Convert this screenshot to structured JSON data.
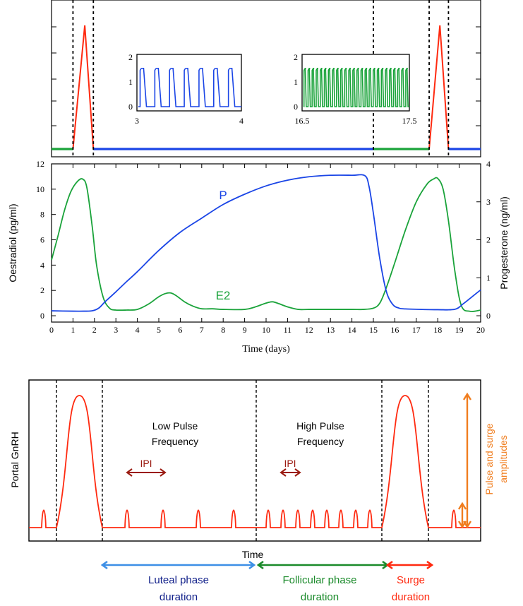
{
  "colors": {
    "gnrh": "#ff2a10",
    "progesterone": "#1a45e6",
    "oestradiol": "#1aa33a",
    "luteal": "#3d8fe6",
    "follicular": "#1a8a2a",
    "surge": "#ff2a10",
    "ipi": "#9a1a10",
    "amplitude": "#f07d1e",
    "label_blue": "#11208a"
  },
  "chart_data": [
    {
      "type": "line",
      "id": "gnrh-simulation",
      "xlim": [
        0,
        20
      ],
      "segments": [
        {
          "from": 0,
          "to": 1,
          "series": "follicular-green"
        },
        {
          "from": 1,
          "to": 1.95,
          "series": "surge-red",
          "peak_x": 1.55
        },
        {
          "from": 1.95,
          "to": 15.0,
          "series": "luteal-blue"
        },
        {
          "from": 15.0,
          "to": 17.6,
          "series": "follicular-green"
        },
        {
          "from": 17.6,
          "to": 18.5,
          "series": "surge-red",
          "peak_x": 18.1
        },
        {
          "from": 18.5,
          "to": 20,
          "series": "luteal-blue"
        }
      ],
      "dashed_lines_x": [
        1.0,
        1.95,
        15.0,
        17.6,
        18.5
      ],
      "insets": [
        {
          "id": "inset-luteal",
          "x_ticks": [
            "3",
            "4"
          ],
          "y_ticks": [
            "0",
            "1",
            "2"
          ],
          "xlim": [
            3,
            4
          ],
          "ylim": [
            0,
            2
          ],
          "pulses": 7,
          "pulse_height": 1.55,
          "series": "luteal-blue"
        },
        {
          "id": "inset-follicular",
          "x_ticks": [
            "16.5",
            "17.5"
          ],
          "y_ticks": [
            "0",
            "1",
            "2"
          ],
          "xlim": [
            16.5,
            17.5
          ],
          "ylim": [
            0,
            2
          ],
          "pulses": 26,
          "pulse_height": 1.55,
          "series": "follicular-green"
        }
      ]
    },
    {
      "type": "line",
      "id": "hormone-levels",
      "xlabel": "Time (days)",
      "ylabel": "Oestradiol (pg/ml)",
      "ylabel_right": "Progesterone (ng/ml)",
      "xlim": [
        0,
        20
      ],
      "ylim": [
        -0.5,
        12
      ],
      "ylim_right": [
        -0.1667,
        4
      ],
      "x_ticks": [
        "0",
        "1",
        "2",
        "3",
        "4",
        "5",
        "6",
        "7",
        "8",
        "9",
        "10",
        "11",
        "12",
        "13",
        "14",
        "15",
        "16",
        "17",
        "18",
        "19",
        "20"
      ],
      "y_ticks": [
        "0",
        "2",
        "4",
        "6",
        "8",
        "10",
        "12"
      ],
      "y_ticks_right": [
        "0",
        "1",
        "2",
        "3",
        "4"
      ],
      "series": [
        {
          "name": "E2",
          "axis": "left",
          "x": [
            0,
            0.3,
            0.6,
            0.9,
            1.2,
            1.45,
            1.65,
            1.9,
            2.1,
            2.4,
            2.7,
            3.0,
            3.5,
            4.0,
            4.5,
            5.0,
            5.3,
            5.55,
            5.8,
            6.2,
            6.6,
            7.0,
            7.5,
            8.0,
            9.0,
            9.5,
            10.0,
            10.3,
            10.6,
            11.0,
            11.5,
            12.0,
            13.0,
            14.0,
            14.5,
            15.0,
            15.3,
            15.6,
            16.0,
            16.5,
            17.0,
            17.5,
            17.8,
            18.0,
            18.25,
            18.5,
            18.8,
            19.1,
            19.5,
            20.0
          ],
          "y": [
            4.4,
            6.3,
            8.3,
            9.8,
            10.6,
            10.8,
            10.1,
            7.0,
            4.0,
            1.5,
            0.6,
            0.45,
            0.45,
            0.5,
            0.9,
            1.5,
            1.75,
            1.8,
            1.6,
            1.1,
            0.75,
            0.55,
            0.55,
            0.5,
            0.5,
            0.7,
            1.0,
            1.1,
            0.95,
            0.7,
            0.5,
            0.5,
            0.5,
            0.5,
            0.5,
            0.6,
            1.0,
            2.2,
            4.2,
            6.8,
            9.0,
            10.4,
            10.8,
            10.85,
            10.0,
            7.5,
            3.5,
            0.8,
            0.35,
            0.45
          ]
        },
        {
          "name": "P",
          "axis": "right",
          "x": [
            0,
            1.0,
            1.5,
            1.9,
            2.2,
            2.5,
            3.0,
            3.5,
            4.0,
            5.0,
            6.0,
            7.0,
            8.0,
            9.0,
            10.0,
            11.0,
            12.0,
            13.0,
            14.0,
            14.6,
            14.8,
            15.0,
            15.3,
            15.6,
            15.9,
            16.2,
            16.5,
            17.0,
            18.0,
            18.8,
            19.2,
            19.6,
            20.0
          ],
          "y": [
            0.13,
            0.12,
            0.12,
            0.13,
            0.2,
            0.37,
            0.63,
            0.9,
            1.16,
            1.72,
            2.2,
            2.57,
            2.93,
            3.2,
            3.42,
            3.57,
            3.66,
            3.7,
            3.7,
            3.69,
            3.4,
            2.7,
            1.5,
            0.65,
            0.3,
            0.2,
            0.18,
            0.17,
            0.16,
            0.17,
            0.32,
            0.5,
            0.68
          ]
        }
      ]
    },
    {
      "type": "line",
      "id": "gnrh-schematic",
      "xlabel": "Time",
      "ylabel": "Portal GnRH",
      "series": [
        {
          "values_described_by": "schematic-pulse-train"
        }
      ],
      "annotations": {
        "low_pulse": [
          "Low Pulse",
          "Frequency"
        ],
        "high_pulse": [
          "High Pulse",
          "Frequency"
        ],
        "ipi_low": "IPI",
        "ipi_high": "IPI",
        "amplitude": [
          "Pulse and surge",
          "amplitudes"
        ],
        "luteal": [
          "Luteal phase",
          "duration"
        ],
        "follicular": [
          "Follicular phase",
          "duration"
        ],
        "surge": [
          "Surge",
          "duration"
        ]
      }
    }
  ]
}
